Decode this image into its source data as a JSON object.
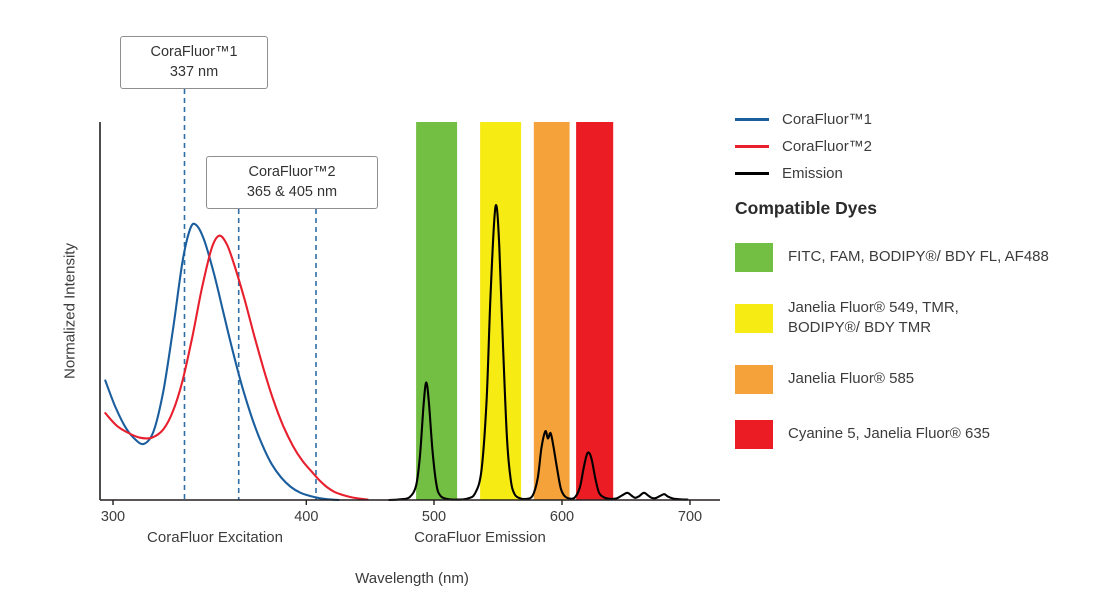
{
  "chart": {
    "ylabel": "Normalized Intensity",
    "xlabel": "Wavelength (nm)",
    "x_group_labels": [
      "CoraFluor Excitation",
      "CoraFluor Emission"
    ]
  },
  "annotations": [
    {
      "line1": "CoraFluor™1",
      "line2": "337 nm",
      "lines_nm": [
        337
      ]
    },
    {
      "line1": "CoraFluor™2",
      "line2": "365 & 405 nm",
      "lines_nm": [
        365,
        405
      ]
    }
  ],
  "legend": {
    "entries": [
      {
        "label": "CoraFluor™1",
        "color": "#1b5e9e"
      },
      {
        "label": "CoraFluor™2",
        "color": "#e8202e"
      },
      {
        "label": "Emission",
        "color": "#000000"
      }
    ]
  },
  "dyes": {
    "heading": "Compatible Dyes",
    "items": [
      {
        "label": "FITC, FAM, BODIPY®/ BDY FL, AF488",
        "color": "#72bf44"
      },
      {
        "label": "Janelia Fluor® 549, TMR,\nBODIPY®/ BDY TMR",
        "color": "#f7eb14"
      },
      {
        "label": "Janelia Fluor® 585",
        "color": "#f5a23b"
      },
      {
        "label": "Cyanine 5, Janelia Fluor® 635",
        "color": "#ec1c24"
      }
    ]
  },
  "chart_data": {
    "type": "line",
    "title": "CoraFluor excitation and emission spectra",
    "xlabel": "Wavelength (nm)",
    "ylabel": "Normalized Intensity",
    "x_ticks": [
      300,
      400,
      500,
      600,
      700
    ],
    "xlim": [
      295,
      715
    ],
    "ylim": [
      0,
      1.05
    ],
    "legend_position": "top-right",
    "grid": false,
    "dashed_color": "#2e6ea6",
    "dashed_lines_nm": [
      337,
      365,
      405
    ],
    "bands": [
      {
        "name": "FITC, FAM, BODIPY/BDY FL, AF488",
        "nm": [
          486,
          518
        ],
        "color": "#72bf44"
      },
      {
        "name": "Janelia Fluor 549, TMR, BODIPY/BDY TMR",
        "nm": [
          536,
          568
        ],
        "color": "#f7eb14"
      },
      {
        "name": "Janelia Fluor 585",
        "nm": [
          578,
          606
        ],
        "color": "#f5a23b"
      },
      {
        "name": "Cyanine 5, Janelia Fluor 635",
        "nm": [
          611,
          640
        ],
        "color": "#ec1c24"
      }
    ],
    "series": [
      {
        "name": "CoraFluor™1 excitation",
        "color": "#1b5e9e",
        "points": [
          [
            296,
            0.33
          ],
          [
            301,
            0.26
          ],
          [
            306,
            0.205
          ],
          [
            311,
            0.17
          ],
          [
            316,
            0.155
          ],
          [
            321,
            0.19
          ],
          [
            326,
            0.3
          ],
          [
            331,
            0.47
          ],
          [
            336,
            0.66
          ],
          [
            340,
            0.75
          ],
          [
            343,
            0.76
          ],
          [
            347,
            0.72
          ],
          [
            352,
            0.63
          ],
          [
            357,
            0.52
          ],
          [
            362,
            0.41
          ],
          [
            367,
            0.31
          ],
          [
            372,
            0.225
          ],
          [
            377,
            0.155
          ],
          [
            382,
            0.1
          ],
          [
            387,
            0.062
          ],
          [
            392,
            0.036
          ],
          [
            397,
            0.02
          ],
          [
            402,
            0.011
          ],
          [
            408,
            0.005
          ],
          [
            415,
            0.002
          ],
          [
            424,
            0
          ]
        ]
      },
      {
        "name": "CoraFluor™2 excitation",
        "color": "#e8202e",
        "points": [
          [
            296,
            0.24
          ],
          [
            302,
            0.205
          ],
          [
            308,
            0.185
          ],
          [
            314,
            0.172
          ],
          [
            320,
            0.172
          ],
          [
            326,
            0.195
          ],
          [
            331,
            0.245
          ],
          [
            336,
            0.33
          ],
          [
            341,
            0.45
          ],
          [
            346,
            0.585
          ],
          [
            351,
            0.695
          ],
          [
            355,
            0.73
          ],
          [
            359,
            0.705
          ],
          [
            363,
            0.645
          ],
          [
            368,
            0.555
          ],
          [
            373,
            0.455
          ],
          [
            378,
            0.36
          ],
          [
            383,
            0.275
          ],
          [
            388,
            0.205
          ],
          [
            393,
            0.15
          ],
          [
            398,
            0.108
          ],
          [
            403,
            0.077
          ],
          [
            408,
            0.054
          ],
          [
            414,
            0.036
          ],
          [
            420,
            0.023
          ],
          [
            427,
            0.014
          ],
          [
            434,
            0.008
          ],
          [
            441,
            0.004
          ],
          [
            448,
            0.001
          ]
        ]
      },
      {
        "name": "Emission",
        "color": "#000000",
        "points": [
          [
            465,
            0
          ],
          [
            474,
            0.002
          ],
          [
            481,
            0.008
          ],
          [
            486,
            0.04
          ],
          [
            489,
            0.12
          ],
          [
            492,
            0.27
          ],
          [
            494,
            0.325
          ],
          [
            496,
            0.27
          ],
          [
            499,
            0.13
          ],
          [
            502,
            0.04
          ],
          [
            505,
            0.012
          ],
          [
            510,
            0.003
          ],
          [
            518,
            0.001
          ],
          [
            526,
            0.004
          ],
          [
            532,
            0.018
          ],
          [
            537,
            0.08
          ],
          [
            541,
            0.27
          ],
          [
            544,
            0.55
          ],
          [
            547,
            0.77
          ],
          [
            549,
            0.81
          ],
          [
            551,
            0.7
          ],
          [
            554,
            0.42
          ],
          [
            557,
            0.17
          ],
          [
            560,
            0.055
          ],
          [
            563,
            0.016
          ],
          [
            567,
            0.005
          ],
          [
            572,
            0.003
          ],
          [
            577,
            0.012
          ],
          [
            581,
            0.06
          ],
          [
            584,
            0.145
          ],
          [
            587,
            0.19
          ],
          [
            589,
            0.17
          ],
          [
            591,
            0.185
          ],
          [
            593,
            0.155
          ],
          [
            596,
            0.09
          ],
          [
            599,
            0.033
          ],
          [
            602,
            0.011
          ],
          [
            606,
            0.004
          ],
          [
            610,
            0.007
          ],
          [
            614,
            0.035
          ],
          [
            617,
            0.09
          ],
          [
            620,
            0.13
          ],
          [
            623,
            0.115
          ],
          [
            626,
            0.06
          ],
          [
            629,
            0.02
          ],
          [
            633,
            0.007
          ],
          [
            638,
            0.003
          ],
          [
            643,
            0.005
          ],
          [
            647,
            0.013
          ],
          [
            651,
            0.02
          ],
          [
            654,
            0.013
          ],
          [
            657,
            0.006
          ],
          [
            660,
            0.01
          ],
          [
            664,
            0.02
          ],
          [
            667,
            0.013
          ],
          [
            670,
            0.006
          ],
          [
            673,
            0.005
          ],
          [
            677,
            0.012
          ],
          [
            680,
            0.016
          ],
          [
            683,
            0.009
          ],
          [
            687,
            0.004
          ],
          [
            692,
            0.002
          ],
          [
            698,
            0.001
          ]
        ]
      }
    ]
  }
}
